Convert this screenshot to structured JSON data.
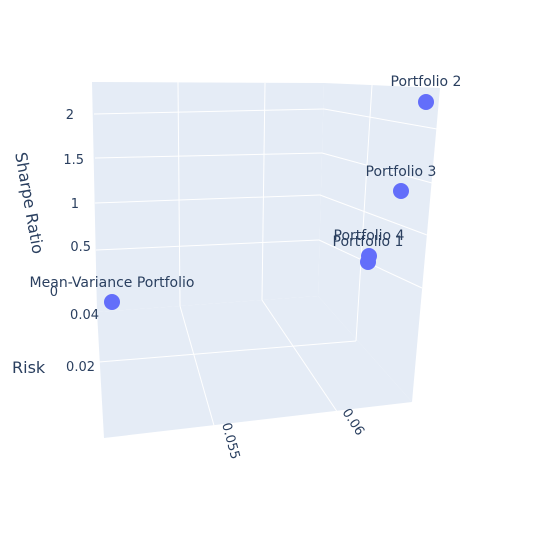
{
  "chart_data": {
    "type": "scatter3d",
    "title": "",
    "axes": {
      "x": {
        "label": "",
        "ticks": [
          "0.055",
          "0.06"
        ]
      },
      "y": {
        "label": "Risk",
        "ticks": [
          "0.02",
          "0.04"
        ]
      },
      "z": {
        "label": "Sharpe Ratio",
        "ticks": [
          "0",
          "0.5",
          "1",
          "1.5",
          "2"
        ]
      }
    },
    "marker_color": "#636efa",
    "pane_color": "#e5ecf6",
    "grid_color": "#ffffff",
    "points": [
      {
        "name": "Mean-Variance Portfolio",
        "sharpe": 0.0
      },
      {
        "name": "Portfolio 1",
        "sharpe": 0.45
      },
      {
        "name": "Portfolio 2",
        "sharpe": 2.2
      },
      {
        "name": "Portfolio 3",
        "sharpe": 1.3
      },
      {
        "name": "Portfolio 4",
        "sharpe": 0.5
      }
    ]
  }
}
